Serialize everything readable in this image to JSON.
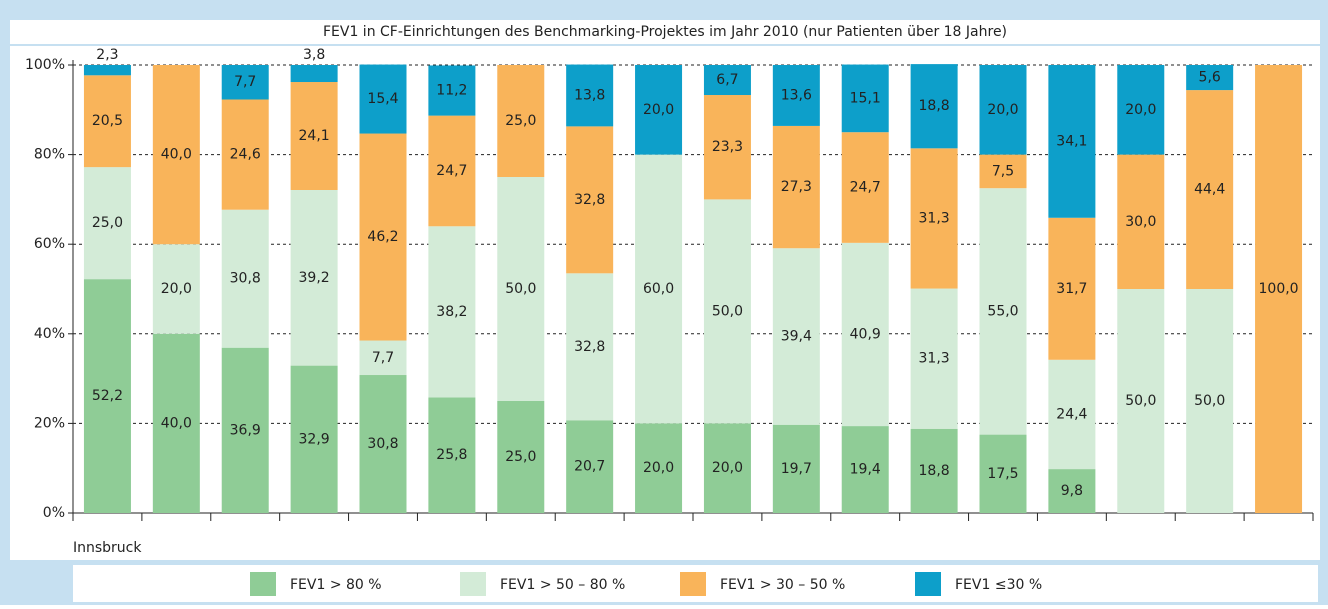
{
  "chart_data": {
    "type": "stacked-bar",
    "title": "FEV1 in CF-Einrichtungen des Benchmarking-Projektes im Jahr 2010 (nur Patienten über 18 Jahre)",
    "categories": [
      "Innsbruck",
      null,
      null,
      null,
      null,
      null,
      null,
      null,
      null,
      null,
      null,
      null,
      null,
      null,
      null,
      null,
      null,
      null
    ],
    "series": [
      {
        "name": "FEV1 > 80 %",
        "color": "#8fcc96",
        "values": [
          52.2,
          40.0,
          36.9,
          32.9,
          30.8,
          25.8,
          25.0,
          20.7,
          20.0,
          20.0,
          19.7,
          19.4,
          18.8,
          17.5,
          9.8,
          null,
          null,
          null
        ],
        "value_labels": [
          "52,2",
          "40,0",
          "36,9",
          "32,9",
          "30,8",
          "25,8",
          "25,0",
          "20,7",
          "20,0",
          "20,0",
          "19,7",
          "19,4",
          "18,8",
          "17,5",
          "9,8",
          null,
          null,
          null
        ]
      },
      {
        "name": "FEV1 > 50 – 80 %",
        "color": "#d3ebd7",
        "values": [
          25.0,
          20.0,
          30.8,
          39.2,
          7.7,
          38.2,
          50.0,
          32.8,
          60.0,
          50.0,
          39.4,
          40.9,
          31.3,
          55.0,
          24.4,
          50.0,
          50.0,
          null
        ],
        "value_labels": [
          "25,0",
          "20,0",
          "30,8",
          "39,2",
          "7,7",
          "38,2",
          "50,0",
          "32,8",
          "60,0",
          "50,0",
          "39,4",
          "40,9",
          "31,3",
          "55,0",
          "24,4",
          "50,0",
          "50,0",
          null
        ]
      },
      {
        "name": "FEV1 > 30 – 50 %",
        "color": "#f9b45a",
        "values": [
          20.5,
          40.0,
          24.6,
          24.1,
          46.2,
          24.7,
          25.0,
          32.8,
          null,
          23.3,
          27.3,
          24.7,
          31.3,
          7.5,
          31.7,
          30.0,
          44.4,
          100.0
        ],
        "value_labels": [
          "20,5",
          "40,0",
          "24,6",
          "24,1",
          "46,2",
          "24,7",
          "25,0",
          "32,8",
          null,
          "23,3",
          "27,3",
          "24,7",
          "31,3",
          "7,5",
          "31,7",
          "30,0",
          "44,4",
          "100,0"
        ]
      },
      {
        "name": "FEV1 ≤30 %",
        "color": "#0d9fca",
        "values": [
          2.3,
          null,
          7.7,
          3.8,
          15.4,
          11.2,
          null,
          13.8,
          20.0,
          6.7,
          13.6,
          15.1,
          18.8,
          20.0,
          34.1,
          20.0,
          5.6,
          null
        ],
        "value_labels": [
          "2,3",
          null,
          "7,7",
          "3,8",
          "15,4",
          "11,2",
          null,
          "13,8",
          "20,0",
          "6,7",
          "13,6",
          "15,1",
          "18,8",
          "20,0",
          "34,1",
          "20,0",
          "5,6",
          null
        ]
      }
    ],
    "ylim": [
      0,
      100
    ],
    "yticks": [
      {
        "value": 0,
        "label": "0%"
      },
      {
        "value": 20,
        "label": "20%"
      },
      {
        "value": 40,
        "label": "40%"
      },
      {
        "value": 60,
        "label": "60%"
      },
      {
        "value": 80,
        "label": "80%"
      },
      {
        "value": 100,
        "label": "100%"
      }
    ],
    "grid": true,
    "legend": "bottom"
  }
}
